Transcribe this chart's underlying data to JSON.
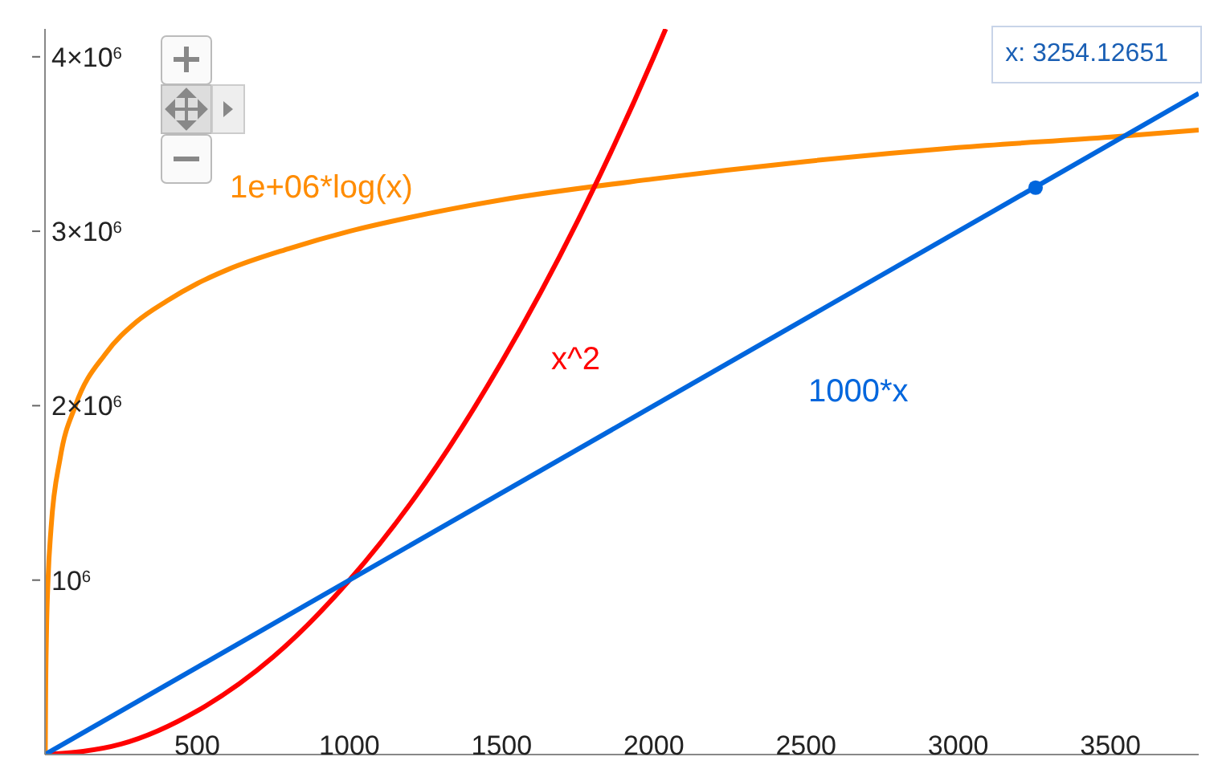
{
  "chart_data": {
    "type": "line",
    "xlim": [
      0,
      3790
    ],
    "xticks": [
      500,
      1000,
      1500,
      2000,
      2500,
      3000,
      3500
    ],
    "ylim": [
      0,
      4160000
    ],
    "yticks": [
      {
        "value": 1000000,
        "label": "10$^{6}$"
      },
      {
        "value": 2000000,
        "label": "2×10$^{6}$"
      },
      {
        "value": 3000000,
        "label": "3×10$^{6}$"
      },
      {
        "value": 4000000,
        "label": "4×10$^{6}$"
      }
    ],
    "grid": false,
    "marker": "none",
    "line_style": "solid",
    "annotations": [
      "x: 3254.12651"
    ],
    "series": [
      {
        "name": "1e+06*log(x)",
        "color": "#ff8c00",
        "x": [
          1,
          2,
          5,
          10,
          20,
          50,
          100,
          200,
          300,
          400,
          500,
          600,
          800,
          1000,
          1200,
          1500,
          2000,
          2500,
          3000,
          3500,
          3790
        ],
        "values": [
          0,
          300000,
          700000,
          1000000,
          1300000,
          1700000,
          2000000,
          2300000,
          2480000,
          2600000,
          2700000,
          2780000,
          2900000,
          3000000,
          3080000,
          3180000,
          3300000,
          3400000,
          3480000,
          3540000,
          3580000
        ]
      },
      {
        "name": "x^2",
        "color": "#ff0000",
        "x": [
          0,
          250,
          500,
          750,
          1000,
          1250,
          1500,
          1750,
          2000,
          2039
        ],
        "values": [
          0,
          60000,
          250000,
          560000,
          1000000,
          1560000,
          2250000,
          3060000,
          4000000,
          4160000
        ]
      },
      {
        "name": "1000*x",
        "color": "#0066dd",
        "x": [
          0,
          3790
        ],
        "values": [
          0,
          3790000
        ]
      },
      {
        "type": "scatter",
        "color": "#0066dd",
        "x": [
          3254.12651
        ],
        "values": [
          3250000
        ],
        "marker": "circle"
      }
    ]
  }
}
